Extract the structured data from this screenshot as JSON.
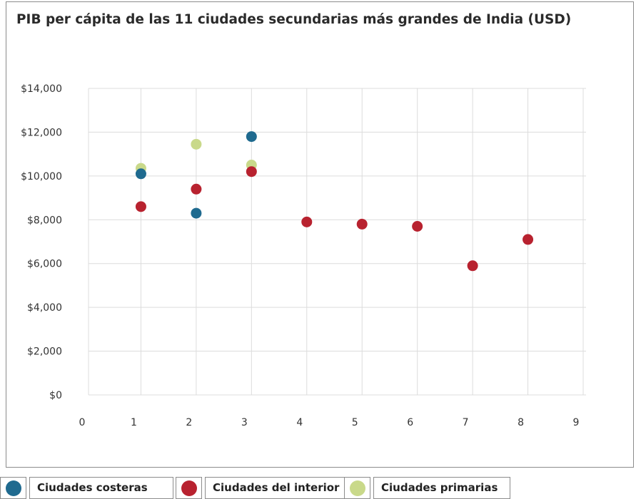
{
  "chart_data": {
    "type": "scatter",
    "title": "PIB per cápita de las 11 ciudades secundarias más grandes de India (USD)",
    "xlabel": "",
    "ylabel": "",
    "xlim": [
      0,
      9
    ],
    "ylim": [
      0,
      14000
    ],
    "x_ticks": [
      "0",
      "1",
      "2",
      "3",
      "4",
      "5",
      "6",
      "7",
      "8",
      "9"
    ],
    "y_ticks": [
      "$0",
      "$2,000",
      "$4,000",
      "$6,000",
      "$8,000",
      "$10,000",
      "$12,000",
      "$14,000"
    ],
    "grid": true,
    "legend_position": "bottom",
    "series": [
      {
        "name": "Ciudades costeras",
        "color": "#1f6a8f",
        "points": [
          {
            "x": 1,
            "y": 10100
          },
          {
            "x": 2,
            "y": 8300
          },
          {
            "x": 3,
            "y": 11800
          }
        ]
      },
      {
        "name": "Ciudades del interior",
        "color": "#b8222f",
        "points": [
          {
            "x": 1,
            "y": 8600
          },
          {
            "x": 2,
            "y": 9400
          },
          {
            "x": 3,
            "y": 10200
          },
          {
            "x": 4,
            "y": 7900
          },
          {
            "x": 5,
            "y": 7800
          },
          {
            "x": 6,
            "y": 7700
          },
          {
            "x": 7,
            "y": 5900
          },
          {
            "x": 8,
            "y": 7100
          }
        ]
      },
      {
        "name": "Ciudades primarias",
        "color": "#c9d98a",
        "points": [
          {
            "x": 1,
            "y": 10350
          },
          {
            "x": 2,
            "y": 11450
          },
          {
            "x": 3,
            "y": 10500
          }
        ]
      }
    ]
  }
}
